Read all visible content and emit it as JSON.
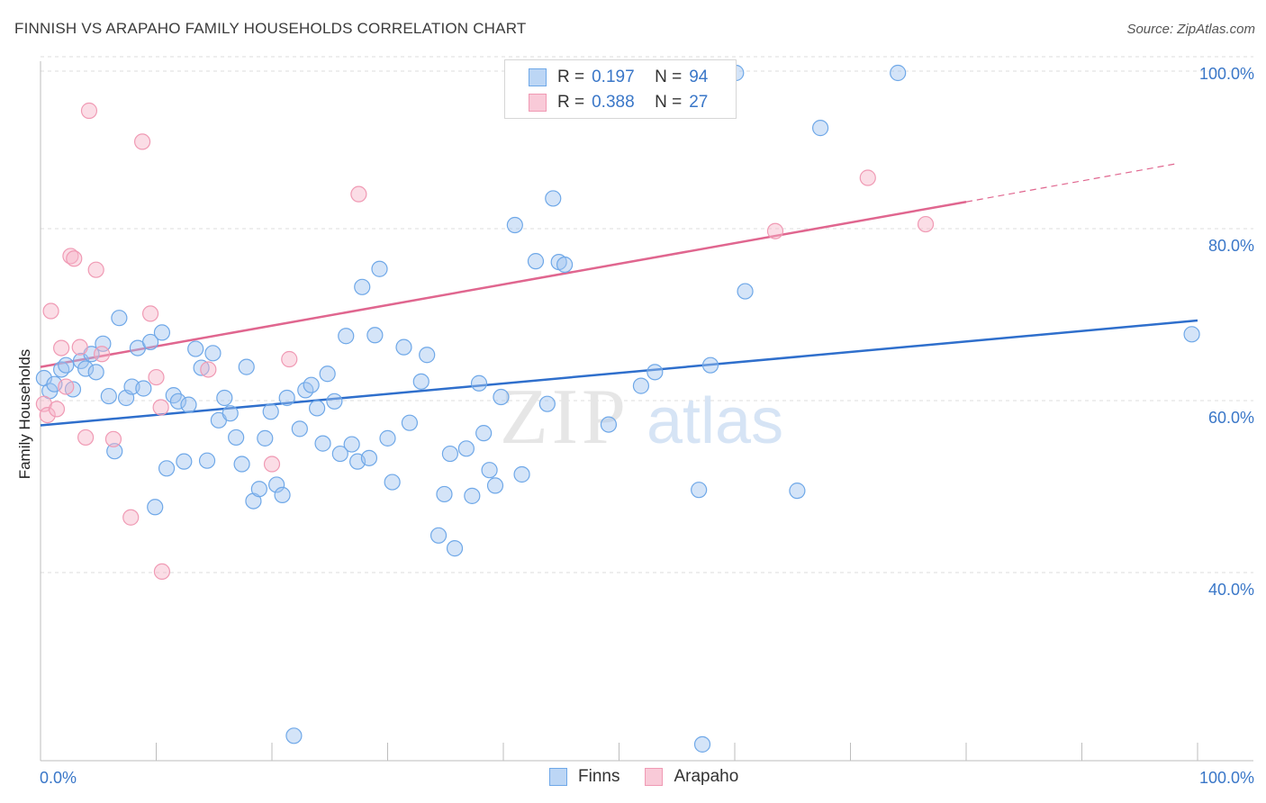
{
  "title": "FINNISH VS ARAPAHO FAMILY HOUSEHOLDS CORRELATION CHART",
  "source": "Source: ZipAtlas.com",
  "watermark": {
    "zip": "ZIP",
    "atlas": "atlas"
  },
  "legend": {
    "series": [
      {
        "name": "Finns",
        "r_label": "R =",
        "r": "0.197",
        "n_label": "N =",
        "n": "94",
        "color": "#6fa8e8",
        "fill": "#bcd6f5"
      },
      {
        "name": "Arapaho",
        "r_label": "R =",
        "r": "0.388",
        "n_label": "N =",
        "n": "27",
        "color": "#f09ab4",
        "fill": "#f9cad8"
      }
    ]
  },
  "chart_data": {
    "type": "scatter",
    "title": "FINNISH VS ARAPAHO FAMILY HOUSEHOLDS CORRELATION CHART",
    "xlabel": "",
    "ylabel": "Family Households",
    "xlim": [
      0,
      100
    ],
    "ylim": [
      20,
      104
    ],
    "x_tick_labels": [
      "0.0%",
      "100.0%"
    ],
    "y_tick_labels": [
      {
        "value": 40,
        "label": "40.0%"
      },
      {
        "value": 60,
        "label": "60.0%"
      },
      {
        "value": 80,
        "label": "80.0%"
      },
      {
        "value": 100,
        "label": "100.0%"
      }
    ],
    "series": [
      {
        "name": "Finns",
        "color": "#6fa8e8",
        "trend": {
          "x": [
            0,
            100
          ],
          "y": [
            59.0,
            71.2
          ],
          "color": "#2f6fcc"
        },
        "points": [
          [
            0.3,
            64.5
          ],
          [
            0.8,
            63.0
          ],
          [
            1.2,
            63.8
          ],
          [
            1.8,
            65.5
          ],
          [
            2.2,
            66.0
          ],
          [
            2.8,
            63.2
          ],
          [
            3.5,
            66.5
          ],
          [
            3.9,
            65.6
          ],
          [
            4.4,
            67.3
          ],
          [
            4.8,
            65.2
          ],
          [
            5.4,
            68.5
          ],
          [
            5.9,
            62.4
          ],
          [
            6.4,
            56.0
          ],
          [
            6.8,
            71.5
          ],
          [
            7.4,
            62.2
          ],
          [
            7.9,
            63.5
          ],
          [
            8.4,
            68.0
          ],
          [
            8.9,
            63.3
          ],
          [
            9.5,
            68.7
          ],
          [
            9.9,
            49.5
          ],
          [
            10.5,
            69.8
          ],
          [
            10.9,
            54.0
          ],
          [
            11.5,
            62.5
          ],
          [
            11.9,
            61.8
          ],
          [
            12.4,
            54.8
          ],
          [
            12.8,
            61.4
          ],
          [
            13.4,
            67.9
          ],
          [
            13.9,
            65.7
          ],
          [
            14.4,
            54.9
          ],
          [
            14.9,
            67.4
          ],
          [
            15.4,
            59.6
          ],
          [
            15.9,
            62.2
          ],
          [
            16.4,
            60.4
          ],
          [
            16.9,
            57.6
          ],
          [
            17.4,
            54.5
          ],
          [
            17.8,
            65.8
          ],
          [
            18.4,
            50.2
          ],
          [
            18.9,
            51.6
          ],
          [
            19.4,
            57.5
          ],
          [
            19.9,
            60.6
          ],
          [
            20.4,
            52.1
          ],
          [
            20.9,
            50.9
          ],
          [
            21.3,
            62.2
          ],
          [
            21.9,
            22.9
          ],
          [
            22.4,
            58.6
          ],
          [
            22.9,
            63.1
          ],
          [
            23.4,
            63.7
          ],
          [
            23.9,
            61.0
          ],
          [
            24.4,
            56.9
          ],
          [
            24.8,
            65.0
          ],
          [
            25.4,
            61.8
          ],
          [
            25.9,
            55.7
          ],
          [
            26.4,
            69.4
          ],
          [
            26.9,
            56.8
          ],
          [
            27.4,
            54.8
          ],
          [
            27.8,
            75.1
          ],
          [
            28.4,
            55.2
          ],
          [
            28.9,
            69.5
          ],
          [
            29.3,
            77.2
          ],
          [
            30.0,
            57.5
          ],
          [
            30.4,
            52.4
          ],
          [
            31.4,
            68.1
          ],
          [
            31.9,
            59.3
          ],
          [
            32.9,
            64.1
          ],
          [
            33.4,
            67.2
          ],
          [
            34.4,
            46.2
          ],
          [
            34.9,
            51.0
          ],
          [
            35.4,
            55.7
          ],
          [
            35.8,
            44.7
          ],
          [
            36.8,
            56.3
          ],
          [
            37.3,
            50.8
          ],
          [
            37.9,
            63.9
          ],
          [
            38.3,
            58.1
          ],
          [
            38.8,
            53.8
          ],
          [
            39.3,
            52.0
          ],
          [
            39.8,
            62.3
          ],
          [
            41.0,
            82.3
          ],
          [
            41.6,
            53.3
          ],
          [
            42.8,
            78.1
          ],
          [
            43.8,
            61.5
          ],
          [
            44.3,
            85.4
          ],
          [
            44.8,
            78.0
          ],
          [
            45.3,
            77.7
          ],
          [
            49.1,
            59.1
          ],
          [
            51.9,
            63.6
          ],
          [
            53.1,
            65.2
          ],
          [
            56.9,
            51.5
          ],
          [
            57.2,
            21.9
          ],
          [
            57.9,
            66.0
          ],
          [
            60.1,
            100.0
          ],
          [
            60.9,
            74.6
          ],
          [
            65.4,
            51.4
          ],
          [
            67.4,
            93.6
          ],
          [
            74.1,
            100.0
          ],
          [
            99.5,
            69.6
          ]
        ]
      },
      {
        "name": "Arapaho",
        "color": "#f09ab4",
        "trend": {
          "x": [
            0,
            80
          ],
          "y": [
            65.8,
            85.0
          ],
          "dashed_to": {
            "x": 98,
            "y": 89.4
          },
          "color": "#e0668f"
        },
        "points": [
          [
            0.3,
            61.5
          ],
          [
            0.6,
            60.2
          ],
          [
            0.9,
            72.3
          ],
          [
            1.4,
            60.9
          ],
          [
            1.8,
            68.0
          ],
          [
            2.2,
            63.5
          ],
          [
            2.6,
            78.7
          ],
          [
            2.9,
            78.4
          ],
          [
            3.4,
            68.1
          ],
          [
            3.9,
            57.6
          ],
          [
            4.2,
            95.6
          ],
          [
            4.8,
            77.1
          ],
          [
            5.3,
            67.3
          ],
          [
            6.3,
            57.4
          ],
          [
            7.8,
            48.3
          ],
          [
            8.8,
            92.0
          ],
          [
            9.5,
            72.0
          ],
          [
            10.0,
            64.6
          ],
          [
            10.4,
            61.1
          ],
          [
            10.5,
            42.0
          ],
          [
            14.5,
            65.5
          ],
          [
            20.0,
            54.5
          ],
          [
            21.5,
            66.7
          ],
          [
            27.5,
            85.9
          ],
          [
            63.5,
            81.6
          ],
          [
            71.5,
            87.8
          ],
          [
            76.5,
            82.4
          ]
        ]
      }
    ]
  }
}
